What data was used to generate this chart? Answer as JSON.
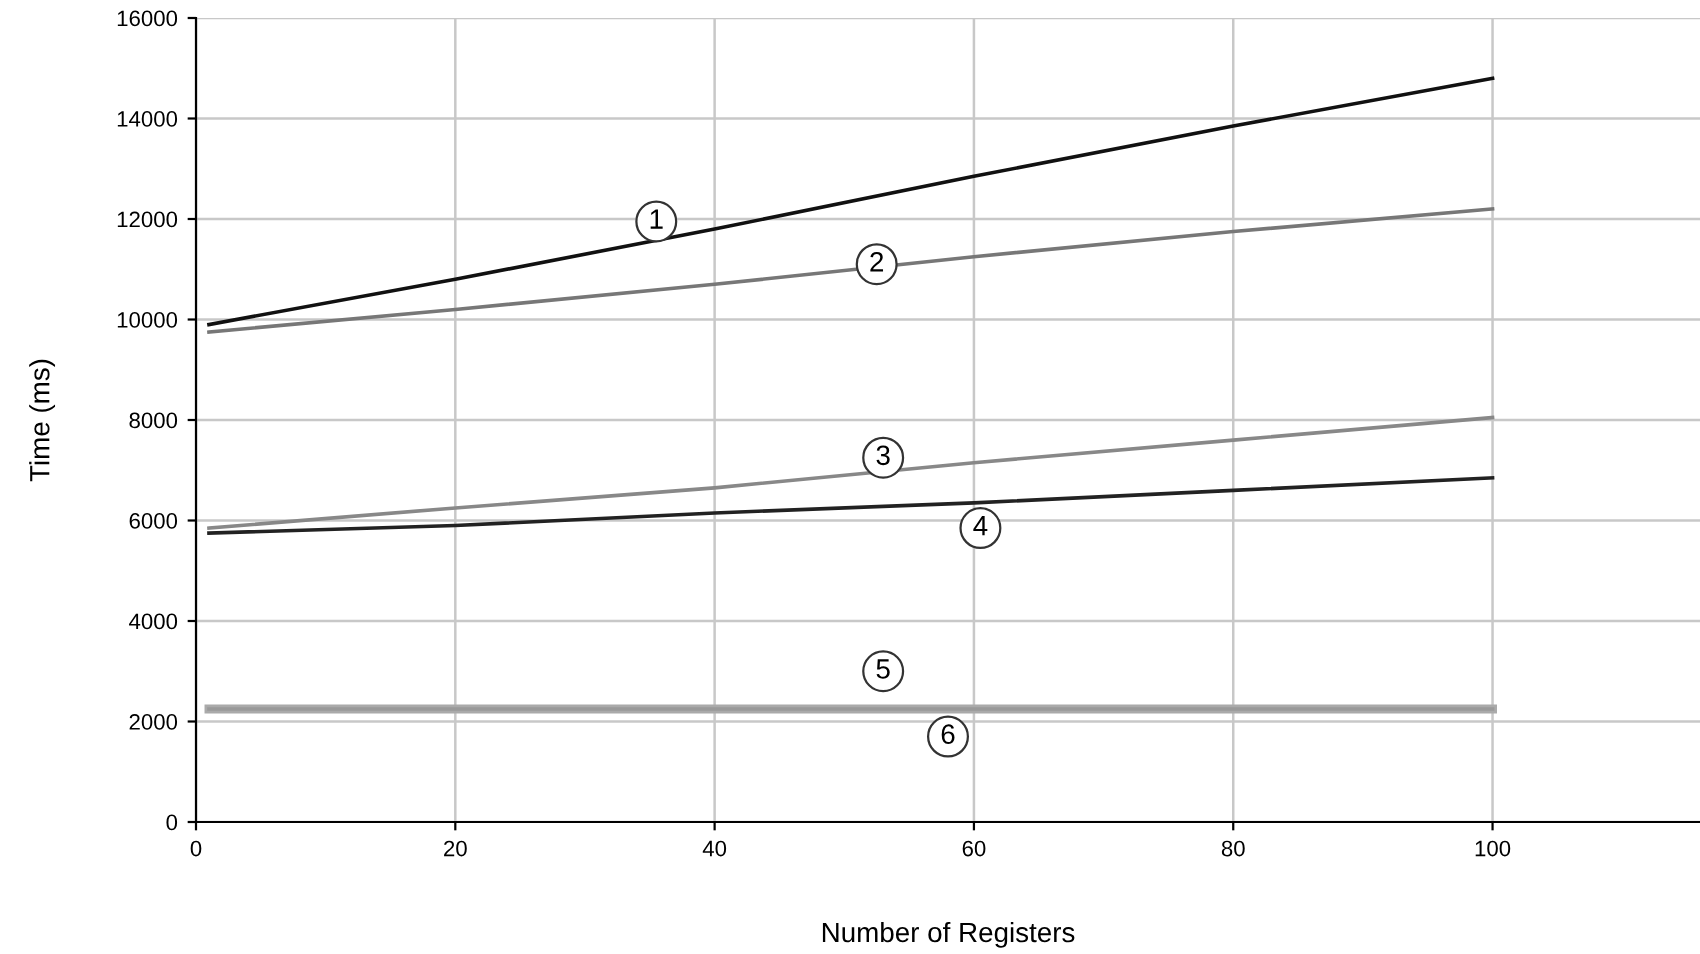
{
  "chart_data": {
    "type": "line",
    "xlabel": "Number of Registers",
    "ylabel": "Time (ms)",
    "x": [
      1,
      20,
      40,
      60,
      80,
      100
    ],
    "series": [
      {
        "color": "#111111",
        "values": [
          9900,
          10800,
          11800,
          12850,
          13850,
          14800
        ]
      },
      {
        "color": "#777777",
        "values": [
          9750,
          10200,
          10700,
          11250,
          11750,
          12200
        ]
      },
      {
        "color": "#888888",
        "values": [
          5850,
          6250,
          6650,
          7150,
          7600,
          8050
        ]
      },
      {
        "color": "#222222",
        "values": [
          5750,
          5900,
          6150,
          6350,
          6600,
          6850
        ]
      },
      {
        "color": "#aaaaaa",
        "values": [
          2250,
          2250,
          2250,
          2250,
          2250,
          2250
        ]
      },
      {
        "color": "#999999",
        "values": [
          2250,
          2250,
          2250,
          2250,
          2250,
          2250
        ]
      }
    ],
    "xlim": [
      0,
      116
    ],
    "xticks": [
      0,
      20,
      40,
      60,
      80,
      100
    ],
    "ylim": [
      0,
      16000
    ],
    "yticks": [
      0,
      2000,
      4000,
      6000,
      8000,
      10000,
      12000,
      14000,
      16000
    ],
    "grid": true,
    "legend": false,
    "marker": "none",
    "line_style": "solid",
    "annotations": [
      {
        "text": "1",
        "x": 35.5,
        "y": 11950
      },
      {
        "text": "2",
        "x": 52.5,
        "y": 11100
      },
      {
        "text": "3",
        "x": 53,
        "y": 7250
      },
      {
        "text": "4",
        "x": 60.5,
        "y": 5850
      },
      {
        "text": "5",
        "x": 53,
        "y": 3000
      },
      {
        "text": "6",
        "x": 58,
        "y": 1700
      }
    ]
  }
}
